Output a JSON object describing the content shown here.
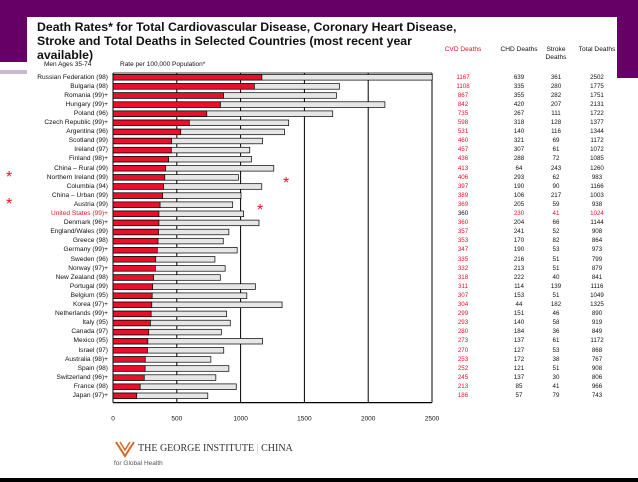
{
  "colors": {
    "frame": "#660066",
    "cvd_bar": "#e8102a",
    "total_bar": "#e6e6e6",
    "highlight": "#e8102a"
  },
  "chart_data": {
    "type": "bar",
    "orientation": "horizontal",
    "title": "Death Rates* for Total Cardiovascular Disease, Coronary Heart Disease, Stroke and Total Deaths in Selected Countries (most recent year available)",
    "group_label": "Men Ages 35-74",
    "xlabel": "Rate per 100,000 Population*",
    "xlim": [
      0,
      2500
    ],
    "xticks": [
      "0",
      "500",
      "1000",
      "1500",
      "2000",
      "2500"
    ],
    "grid": true,
    "highlighted_category": "United States (99)+",
    "starred_categories": [
      "Northern Ireland (99)",
      "Austria (99)"
    ],
    "categories": [
      "Russian Federation (98)",
      "Bulgaria (98)",
      "Romania (99)+",
      "Hungary (99)+",
      "Poland (96)",
      "Czech Republic (99)+",
      "Argentina (96)",
      "Scotland (99)",
      "Ireland (97)",
      "Finland (98)+",
      "China – Rural (99)",
      "Northern Ireland (99)",
      "Columbia (94)",
      "China – Urban (99)",
      "Austria (99)",
      "United States (99)+",
      "Denmark (96)+",
      "England/Wales (99)",
      "Greece (98)",
      "Germany (99)+",
      "Sweden (96)",
      "Norway (97)+",
      "New Zealand (98)",
      "Portugal (99)",
      "Belgium (95)",
      "Korea (97)+",
      "Netherlands (99)+",
      "Italy (95)",
      "Canada (97)",
      "Mexico (95)",
      "Israel (97)",
      "Australia (98)+",
      "Spain (98)",
      "Switzerland (96)+",
      "France (98)",
      "Japan (97)+"
    ],
    "table_headers": [
      "CVD Deaths",
      "CHD Deaths",
      "Stroke Deaths",
      "Total Deaths"
    ],
    "series": [
      {
        "name": "CVD Deaths",
        "values": [
          1167,
          1108,
          867,
          842,
          735,
          598,
          531,
          460,
          457,
          436,
          413,
          406,
          397,
          389,
          369,
          360,
          360,
          357,
          353,
          347,
          335,
          332,
          318,
          311,
          307,
          304,
          299,
          293,
          280,
          273,
          270,
          253,
          252,
          245,
          213,
          186
        ]
      },
      {
        "name": "CHD Deaths",
        "values": [
          639,
          335,
          355,
          420,
          267,
          318,
          140,
          321,
          307,
          288,
          64,
          293,
          190,
          106,
          205,
          230,
          204,
          241,
          170,
          190,
          216,
          213,
          222,
          114,
          153,
          44,
          151,
          140,
          184,
          137,
          127,
          172,
          121,
          137,
          85,
          57
        ]
      },
      {
        "name": "Stroke Deaths",
        "values": [
          361,
          280,
          282,
          207,
          111,
          128,
          116,
          69,
          61,
          72,
          243,
          62,
          90,
          217,
          59,
          41,
          66,
          52,
          82,
          53,
          51,
          51,
          40,
          139,
          51,
          182,
          46,
          58,
          36,
          61,
          53,
          38,
          51,
          30,
          41,
          79
        ]
      },
      {
        "name": "Total Deaths",
        "values": [
          2502,
          1775,
          1751,
          2131,
          1722,
          1377,
          1344,
          1172,
          1072,
          1085,
          1260,
          983,
          1166,
          1003,
          938,
          1024,
          1144,
          908,
          864,
          973,
          799,
          879,
          841,
          1116,
          1049,
          1325,
          890,
          919,
          849,
          1172,
          868,
          767,
          908,
          806,
          966,
          743
        ]
      }
    ]
  },
  "logo": {
    "name": "THE GEORGE INSTITUTE",
    "region": "CHINA",
    "tagline": "for Global Health"
  }
}
